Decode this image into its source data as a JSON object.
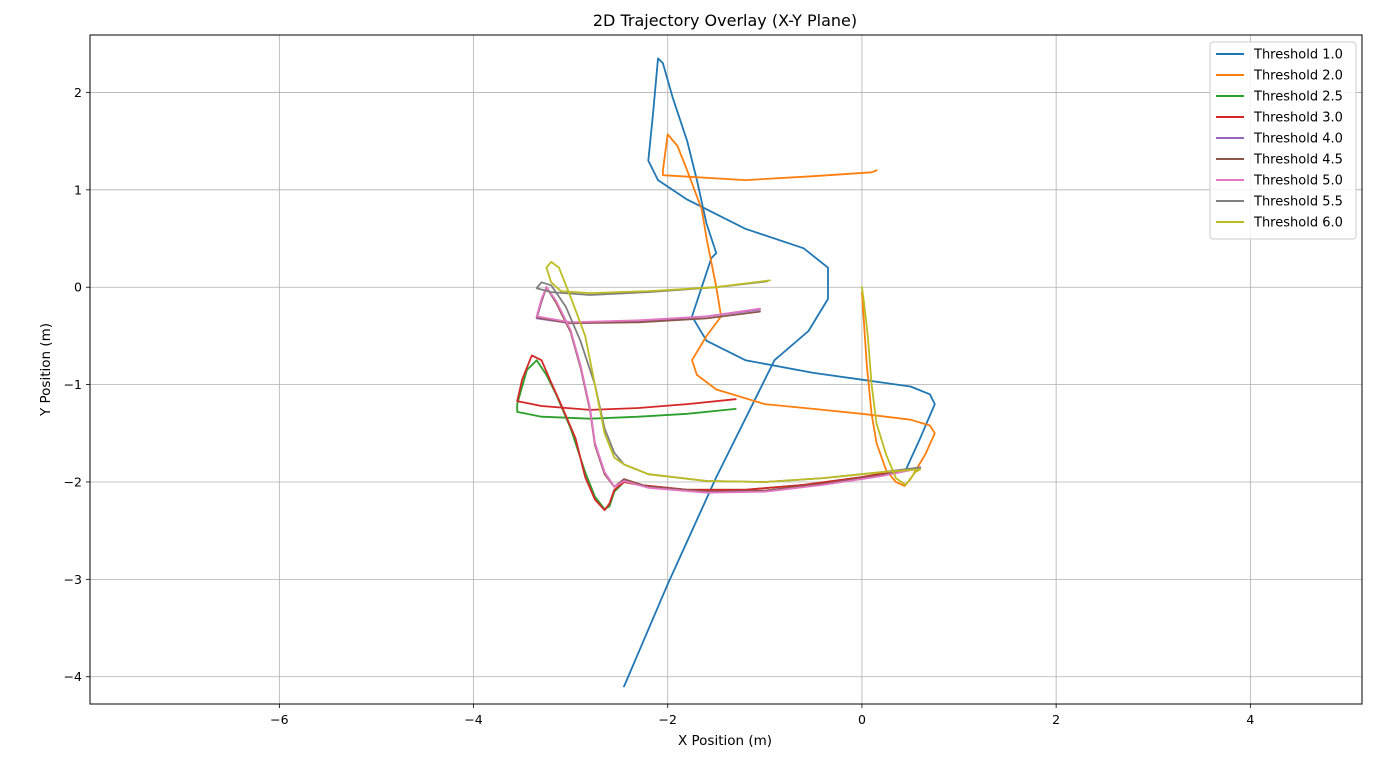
{
  "chart_data": {
    "type": "line",
    "title": "2D Trajectory Overlay (X-Y Plane)",
    "xlabel": "X Position (m)",
    "ylabel": "Y Position (m)",
    "xlim": [
      -7.95,
      5.15
    ],
    "ylim": [
      -4.28,
      2.59
    ],
    "xticks": [
      -6,
      -4,
      -2,
      0,
      2,
      4
    ],
    "yticks": [
      -4,
      -3,
      -2,
      -1,
      0,
      1,
      2
    ],
    "grid": true,
    "legend_position": "top-right",
    "series": [
      {
        "name": "Threshold 1.0",
        "color": "#1f77b4",
        "points": [
          [
            -2.45,
            -4.1
          ],
          [
            -2.0,
            -3.05
          ],
          [
            -1.5,
            -1.95
          ],
          [
            -0.9,
            -0.75
          ],
          [
            -0.55,
            -0.45
          ],
          [
            -0.35,
            -0.12
          ],
          [
            -0.35,
            0.2
          ],
          [
            -0.6,
            0.4
          ],
          [
            -1.2,
            0.6
          ],
          [
            -1.8,
            0.9
          ],
          [
            -2.1,
            1.1
          ],
          [
            -2.2,
            1.3
          ],
          [
            -2.15,
            1.8
          ],
          [
            -2.1,
            2.35
          ],
          [
            -2.05,
            2.3
          ],
          [
            -1.95,
            1.95
          ],
          [
            -1.8,
            1.5
          ],
          [
            -1.7,
            1.1
          ],
          [
            -1.6,
            0.65
          ],
          [
            -1.5,
            0.35
          ],
          [
            -1.55,
            0.3
          ],
          [
            -1.65,
            0.0
          ],
          [
            -1.75,
            -0.3
          ],
          [
            -1.6,
            -0.55
          ],
          [
            -1.2,
            -0.75
          ],
          [
            -0.5,
            -0.88
          ],
          [
            0.0,
            -0.95
          ],
          [
            0.5,
            -1.02
          ],
          [
            0.7,
            -1.1
          ],
          [
            0.75,
            -1.2
          ],
          [
            0.6,
            -1.55
          ],
          [
            0.45,
            -1.88
          ]
        ]
      },
      {
        "name": "Threshold 2.0",
        "color": "#ff7f0e",
        "points": [
          [
            0.15,
            1.2
          ],
          [
            0.1,
            1.18
          ],
          [
            -0.5,
            1.14
          ],
          [
            -1.2,
            1.1
          ],
          [
            -2.05,
            1.15
          ],
          [
            -2.05,
            1.2
          ],
          [
            -2.0,
            1.57
          ],
          [
            -1.9,
            1.45
          ],
          [
            -1.8,
            1.2
          ],
          [
            -1.65,
            0.8
          ],
          [
            -1.6,
            0.5
          ],
          [
            -1.5,
            0.0
          ],
          [
            -1.45,
            -0.3
          ],
          [
            -1.6,
            -0.5
          ],
          [
            -1.75,
            -0.75
          ],
          [
            -1.7,
            -0.9
          ],
          [
            -1.5,
            -1.05
          ],
          [
            -1.0,
            -1.2
          ],
          [
            -0.5,
            -1.25
          ],
          [
            0.0,
            -1.3
          ],
          [
            0.5,
            -1.36
          ],
          [
            0.7,
            -1.42
          ],
          [
            0.75,
            -1.5
          ],
          [
            0.65,
            -1.72
          ],
          [
            0.5,
            -1.97
          ],
          [
            0.44,
            -2.04
          ],
          [
            0.35,
            -2.0
          ],
          [
            0.25,
            -1.88
          ],
          [
            0.15,
            -1.6
          ],
          [
            0.1,
            -1.3
          ],
          [
            0.05,
            -0.8
          ],
          [
            0.01,
            -0.2
          ],
          [
            0.0,
            -0.05
          ]
        ]
      },
      {
        "name": "Threshold 2.5",
        "color": "#2ca02c",
        "points": [
          [
            -1.3,
            -1.25
          ],
          [
            -1.8,
            -1.3
          ],
          [
            -2.3,
            -1.33
          ],
          [
            -2.8,
            -1.35
          ],
          [
            -3.3,
            -1.33
          ],
          [
            -3.55,
            -1.28
          ],
          [
            -3.55,
            -1.2
          ],
          [
            -3.45,
            -0.85
          ],
          [
            -3.35,
            -0.75
          ],
          [
            -3.25,
            -0.9
          ],
          [
            -3.15,
            -1.1
          ],
          [
            -3.0,
            -1.45
          ],
          [
            -2.85,
            -1.9
          ],
          [
            -2.75,
            -2.15
          ],
          [
            -2.65,
            -2.28
          ],
          [
            -2.6,
            -2.25
          ],
          [
            -2.55,
            -2.1
          ],
          [
            -2.45,
            -2.0
          ],
          [
            -2.3,
            -2.03
          ],
          [
            -1.8,
            -2.08
          ],
          [
            -1.2,
            -2.08
          ],
          [
            -0.6,
            -2.03
          ],
          [
            0.0,
            -1.95
          ],
          [
            0.4,
            -1.88
          ]
        ]
      },
      {
        "name": "Threshold 3.0",
        "color": "#d62728",
        "points": [
          [
            -1.3,
            -1.15
          ],
          [
            -1.8,
            -1.2
          ],
          [
            -2.3,
            -1.24
          ],
          [
            -2.8,
            -1.26
          ],
          [
            -3.3,
            -1.22
          ],
          [
            -3.55,
            -1.17
          ],
          [
            -3.5,
            -0.95
          ],
          [
            -3.4,
            -0.7
          ],
          [
            -3.3,
            -0.75
          ],
          [
            -3.2,
            -0.98
          ],
          [
            -3.1,
            -1.2
          ],
          [
            -2.95,
            -1.55
          ],
          [
            -2.85,
            -1.95
          ],
          [
            -2.75,
            -2.18
          ],
          [
            -2.65,
            -2.29
          ],
          [
            -2.6,
            -2.22
          ],
          [
            -2.55,
            -2.08
          ],
          [
            -2.45,
            -2.0
          ],
          [
            -2.3,
            -2.03
          ],
          [
            -1.8,
            -2.08
          ],
          [
            -1.2,
            -2.08
          ],
          [
            -0.6,
            -2.03
          ],
          [
            0.0,
            -1.95
          ],
          [
            0.4,
            -1.88
          ]
        ]
      },
      {
        "name": "Threshold 4.0",
        "color": "#9467bd",
        "points": [
          [
            -1.05,
            -0.23
          ],
          [
            -1.6,
            -0.3
          ],
          [
            -2.3,
            -0.35
          ],
          [
            -3.0,
            -0.37
          ],
          [
            -3.35,
            -0.32
          ],
          [
            -3.3,
            -0.15
          ],
          [
            -3.25,
            0.0
          ],
          [
            -3.15,
            -0.15
          ],
          [
            -3.0,
            -0.45
          ],
          [
            -2.9,
            -0.8
          ],
          [
            -2.8,
            -1.25
          ],
          [
            -2.75,
            -1.6
          ],
          [
            -2.65,
            -1.9
          ],
          [
            -2.55,
            -2.05
          ],
          [
            -2.45,
            -1.98
          ],
          [
            -2.2,
            -2.05
          ],
          [
            -1.6,
            -2.1
          ],
          [
            -1.0,
            -2.09
          ],
          [
            -0.4,
            -2.02
          ],
          [
            0.2,
            -1.93
          ],
          [
            0.6,
            -1.85
          ]
        ]
      },
      {
        "name": "Threshold 4.5",
        "color": "#8c564b",
        "points": [
          [
            -1.05,
            -0.25
          ],
          [
            -1.6,
            -0.32
          ],
          [
            -2.3,
            -0.36
          ],
          [
            -3.0,
            -0.37
          ],
          [
            -3.35,
            -0.31
          ],
          [
            -3.3,
            -0.14
          ],
          [
            -3.25,
            0.0
          ],
          [
            -3.15,
            -0.16
          ],
          [
            -3.0,
            -0.46
          ],
          [
            -2.9,
            -0.82
          ],
          [
            -2.8,
            -1.27
          ],
          [
            -2.75,
            -1.62
          ],
          [
            -2.65,
            -1.92
          ],
          [
            -2.55,
            -2.05
          ],
          [
            -2.45,
            -1.97
          ],
          [
            -2.2,
            -2.05
          ],
          [
            -1.6,
            -2.1
          ],
          [
            -1.0,
            -2.09
          ],
          [
            -0.4,
            -2.02
          ],
          [
            0.2,
            -1.93
          ],
          [
            0.6,
            -1.85
          ]
        ]
      },
      {
        "name": "Threshold 5.0",
        "color": "#e377c2",
        "points": [
          [
            -1.05,
            -0.22
          ],
          [
            -1.6,
            -0.3
          ],
          [
            -2.3,
            -0.34
          ],
          [
            -3.0,
            -0.36
          ],
          [
            -3.35,
            -0.3
          ],
          [
            -3.3,
            -0.12
          ],
          [
            -3.25,
            0.0
          ],
          [
            -3.15,
            -0.14
          ],
          [
            -3.0,
            -0.44
          ],
          [
            -2.9,
            -0.8
          ],
          [
            -2.8,
            -1.25
          ],
          [
            -2.75,
            -1.6
          ],
          [
            -2.65,
            -1.9
          ],
          [
            -2.55,
            -2.05
          ],
          [
            -2.45,
            -1.99
          ],
          [
            -2.2,
            -2.06
          ],
          [
            -1.6,
            -2.11
          ],
          [
            -1.0,
            -2.1
          ],
          [
            -0.4,
            -2.03
          ],
          [
            0.2,
            -1.94
          ],
          [
            0.6,
            -1.86
          ]
        ]
      },
      {
        "name": "Threshold 5.5",
        "color": "#7f7f7f",
        "points": [
          [
            -0.98,
            0.06
          ],
          [
            -1.5,
            0.0
          ],
          [
            -2.2,
            -0.05
          ],
          [
            -2.8,
            -0.08
          ],
          [
            -3.2,
            -0.05
          ],
          [
            -3.35,
            -0.01
          ],
          [
            -3.3,
            0.05
          ],
          [
            -3.2,
            0.02
          ],
          [
            -3.05,
            -0.2
          ],
          [
            -2.9,
            -0.55
          ],
          [
            -2.75,
            -1.0
          ],
          [
            -2.65,
            -1.45
          ],
          [
            -2.55,
            -1.7
          ],
          [
            -2.45,
            -1.82
          ],
          [
            -2.2,
            -1.92
          ],
          [
            -1.6,
            -1.99
          ],
          [
            -1.0,
            -2.0
          ],
          [
            -0.4,
            -1.96
          ],
          [
            0.2,
            -1.9
          ],
          [
            0.6,
            -1.85
          ]
        ]
      },
      {
        "name": "Threshold 6.0",
        "color": "#bcbd22",
        "points": [
          [
            -0.95,
            0.07
          ],
          [
            -1.5,
            0.0
          ],
          [
            -2.2,
            -0.04
          ],
          [
            -2.8,
            -0.06
          ],
          [
            -3.1,
            -0.04
          ],
          [
            -3.2,
            0.05
          ],
          [
            -3.25,
            0.2
          ],
          [
            -3.2,
            0.26
          ],
          [
            -3.12,
            0.2
          ],
          [
            -3.0,
            -0.1
          ],
          [
            -2.85,
            -0.5
          ],
          [
            -2.75,
            -1.0
          ],
          [
            -2.65,
            -1.5
          ],
          [
            -2.55,
            -1.75
          ],
          [
            -2.45,
            -1.82
          ],
          [
            -2.2,
            -1.92
          ],
          [
            -1.6,
            -1.99
          ],
          [
            -1.0,
            -2.0
          ],
          [
            -0.4,
            -1.96
          ],
          [
            0.2,
            -1.9
          ],
          [
            0.45,
            -1.88
          ],
          [
            0.6,
            -1.87
          ],
          [
            0.55,
            -1.9
          ],
          [
            0.45,
            -2.03
          ],
          [
            0.35,
            -1.96
          ],
          [
            0.25,
            -1.72
          ],
          [
            0.15,
            -1.4
          ],
          [
            0.1,
            -1.0
          ],
          [
            0.06,
            -0.5
          ],
          [
            0.02,
            -0.15
          ],
          [
            0.0,
            0.0
          ]
        ]
      }
    ]
  }
}
